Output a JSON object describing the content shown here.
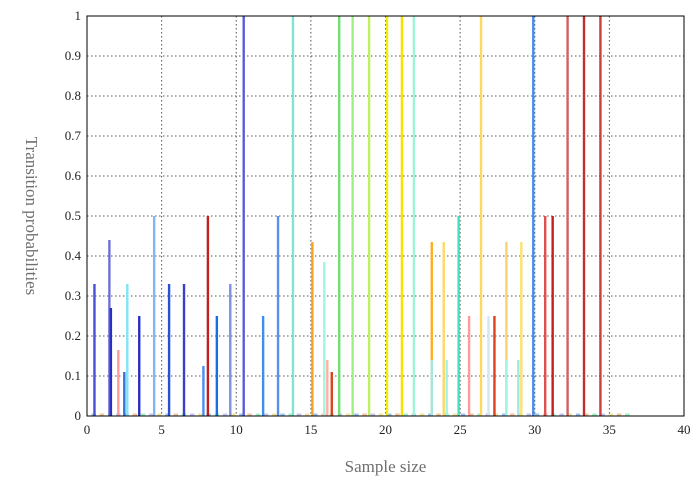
{
  "chart_data": {
    "type": "bar",
    "title": "",
    "xlabel": "Sample size",
    "ylabel": "Transition probabilities",
    "xlim": [
      0,
      40
    ],
    "ylim": [
      0,
      1
    ],
    "xticks": [
      "0",
      "5",
      "10",
      "15",
      "20",
      "25",
      "30",
      "35",
      "40"
    ],
    "yticks": [
      "0",
      "0.1",
      "0.2",
      "0.3",
      "0.4",
      "0.5",
      "0.6",
      "0.7",
      "0.8",
      "0.9",
      "1"
    ],
    "grid": true,
    "legend": "none",
    "bars": [
      {
        "x": 0.5,
        "y": 0.33,
        "color": "#4a4fd6"
      },
      {
        "x": 1.5,
        "y": 0.44,
        "color": "#6f6fd6"
      },
      {
        "x": 1.6,
        "y": 0.27,
        "color": "#2a2fc0"
      },
      {
        "x": 2.1,
        "y": 0.165,
        "color": "#ff9a9a"
      },
      {
        "x": 2.5,
        "y": 0.11,
        "color": "#3a6fe0"
      },
      {
        "x": 2.7,
        "y": 0.33,
        "color": "#7fe4f4"
      },
      {
        "x": 3.5,
        "y": 0.25,
        "color": "#2a2fc0"
      },
      {
        "x": 4.5,
        "y": 0.5,
        "color": "#7fb6f4"
      },
      {
        "x": 5.5,
        "y": 0.33,
        "color": "#2a4fd0"
      },
      {
        "x": 6.5,
        "y": 0.33,
        "color": "#3a3fc8"
      },
      {
        "x": 7.8,
        "y": 0.125,
        "color": "#4a8ff0"
      },
      {
        "x": 8.1,
        "y": 0.5,
        "color": "#c41e1e"
      },
      {
        "x": 8.7,
        "y": 0.25,
        "color": "#1a6fe0"
      },
      {
        "x": 9.6,
        "y": 0.33,
        "color": "#7f8fe4"
      },
      {
        "x": 10.5,
        "y": 1.0,
        "color": "#5a5fd6"
      },
      {
        "x": 11.8,
        "y": 0.25,
        "color": "#3a8ff0"
      },
      {
        "x": 12.8,
        "y": 0.5,
        "color": "#5a8ff0"
      },
      {
        "x": 13.8,
        "y": 1.0,
        "color": "#7fe4d4"
      },
      {
        "x": 15.1,
        "y": 0.435,
        "color": "#ffa020"
      },
      {
        "x": 15.9,
        "y": 0.385,
        "color": "#a0f4e4"
      },
      {
        "x": 16.1,
        "y": 0.14,
        "color": "#ffb0a0"
      },
      {
        "x": 16.4,
        "y": 0.11,
        "color": "#e04020"
      },
      {
        "x": 16.9,
        "y": 1.0,
        "color": "#70e070"
      },
      {
        "x": 17.8,
        "y": 1.0,
        "color": "#a0f080"
      },
      {
        "x": 18.9,
        "y": 1.0,
        "color": "#c0f060"
      },
      {
        "x": 20.1,
        "y": 1.0,
        "color": "#f0f000"
      },
      {
        "x": 21.1,
        "y": 1.0,
        "color": "#f8e000"
      },
      {
        "x": 21.9,
        "y": 1.0,
        "color": "#a0f4d8"
      },
      {
        "x": 23.1,
        "y": 0.435,
        "color": "#ffb020"
      },
      {
        "x": 23.1,
        "y": 0.14,
        "color": "#a0e8e0"
      },
      {
        "x": 23.9,
        "y": 0.435,
        "color": "#ffd860"
      },
      {
        "x": 24.1,
        "y": 0.14,
        "color": "#a0f4e4"
      },
      {
        "x": 24.9,
        "y": 0.5,
        "color": "#40e0c0"
      },
      {
        "x": 25.6,
        "y": 0.25,
        "color": "#ff9a9a"
      },
      {
        "x": 26.4,
        "y": 1.0,
        "color": "#ffd860"
      },
      {
        "x": 26.9,
        "y": 0.25,
        "color": "#d0e8f4"
      },
      {
        "x": 27.3,
        "y": 0.25,
        "color": "#e04020"
      },
      {
        "x": 28.1,
        "y": 0.435,
        "color": "#ffd070"
      },
      {
        "x": 28.1,
        "y": 0.14,
        "color": "#a0f4e4"
      },
      {
        "x": 28.9,
        "y": 0.14,
        "color": "#a0e8e0"
      },
      {
        "x": 29.1,
        "y": 0.435,
        "color": "#ffe070"
      },
      {
        "x": 29.9,
        "y": 1.0,
        "color": "#4a8ff0"
      },
      {
        "x": 30.7,
        "y": 0.5,
        "color": "#e05050"
      },
      {
        "x": 31.2,
        "y": 0.5,
        "color": "#c41e1e"
      },
      {
        "x": 32.2,
        "y": 1.0,
        "color": "#d06060"
      },
      {
        "x": 33.3,
        "y": 1.0,
        "color": "#c03030"
      },
      {
        "x": 34.4,
        "y": 1.0,
        "color": "#c84040"
      }
    ]
  }
}
